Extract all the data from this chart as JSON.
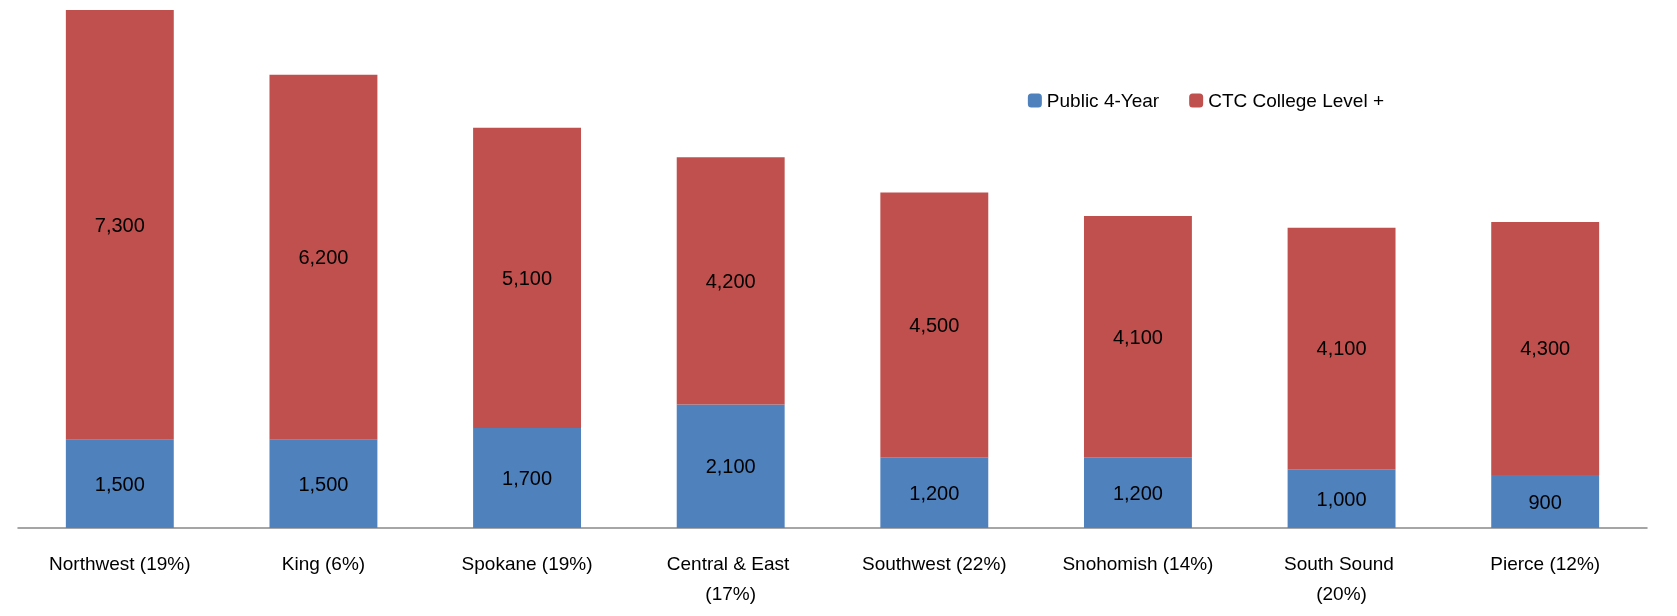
{
  "chart_data": {
    "type": "bar",
    "stacked": true,
    "legend": "top right",
    "categories": [
      "Northwest (19%)",
      "King (6%)",
      "Spokane (19%)",
      "Central & East (17%)",
      "Southwest (22%)",
      "Snohomish (14%)",
      "South Sound (20%)",
      "Pierce (12%)"
    ],
    "series": [
      {
        "name": "Public 4-Year",
        "color": "#4f81bd",
        "values": [
          1500,
          1500,
          1700,
          2100,
          1200,
          1200,
          1000,
          900
        ],
        "value_labels": [
          "1,500",
          "1,500",
          "1,700",
          "2,100",
          "1,200",
          "1,200",
          "1,000",
          "900"
        ]
      },
      {
        "name": "CTC College Level +",
        "color": "#c0504d",
        "values": [
          7300,
          6200,
          5100,
          4200,
          4500,
          4100,
          4100,
          4300
        ],
        "value_labels": [
          "7,300",
          "6,200",
          "5,100",
          "4,200",
          "4,500",
          "4,100",
          "4,100",
          "4,300"
        ]
      }
    ]
  }
}
